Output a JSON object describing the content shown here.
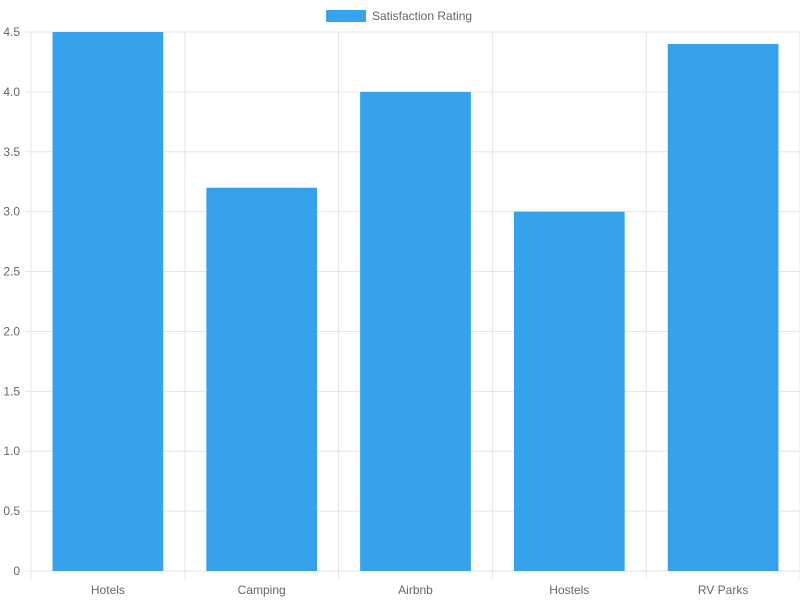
{
  "chart_data": {
    "type": "bar",
    "categories": [
      "Hotels",
      "Camping",
      "Airbnb",
      "Hostels",
      "RV Parks"
    ],
    "series": [
      {
        "name": "Satisfaction Rating",
        "values": [
          4.5,
          3.2,
          4.0,
          3.0,
          4.4
        ]
      }
    ],
    "ylim": [
      0,
      4.5
    ],
    "yticks": [
      "0",
      "0.5",
      "1.0",
      "1.5",
      "2.0",
      "2.5",
      "3.0",
      "3.5",
      "4.0",
      "4.5"
    ],
    "legend_position": "top",
    "grid": true,
    "colors": {
      "bar": "#36a2eb",
      "grid": "#e5e5e5",
      "axis_text": "#666666"
    }
  }
}
